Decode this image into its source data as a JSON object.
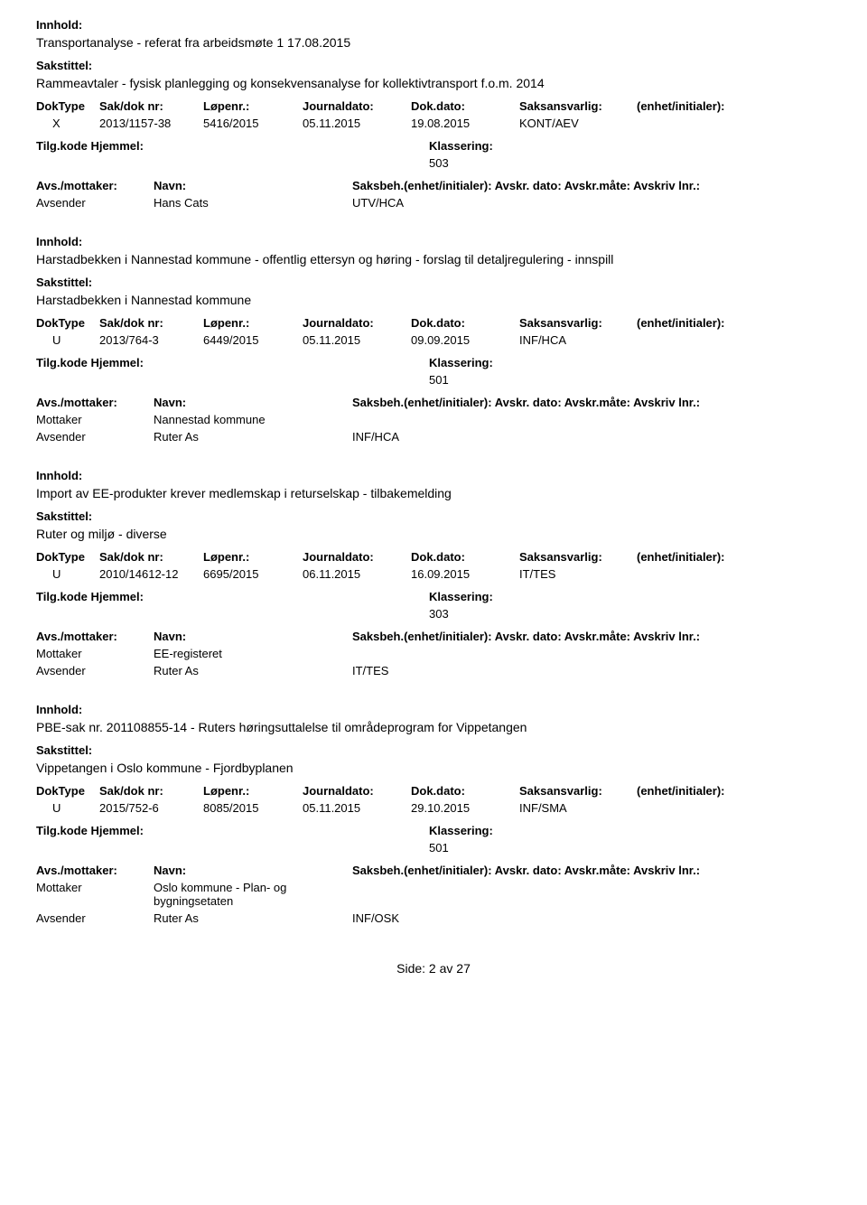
{
  "labels": {
    "innhold": "Innhold:",
    "sakstittel": "Sakstittel:",
    "doktype": "DokType",
    "sakdok": "Sak/dok nr:",
    "lopenr": "Løpenr.:",
    "journaldato": "Journaldato:",
    "dokdato": "Dok.dato:",
    "saksansvarlig": "Saksansvarlig:",
    "enhet": "(enhet/initialer):",
    "tilgkode": "Tilg.kode",
    "hjemmel": "Hjemmel:",
    "klassering": "Klassering:",
    "avsmottaker": "Avs./mottaker:",
    "navn": "Navn:",
    "saksbeh": "Saksbeh.(enhet/initialer):",
    "avskrdato": "Avskr. dato:",
    "avskrmate": "Avskr.måte:",
    "avskrivlnr": "Avskriv lnr.:",
    "avsender": "Avsender",
    "mottaker": "Mottaker"
  },
  "entries": [
    {
      "innhold": "Transportanalyse - referat fra arbeidsmøte 1 17.08.2015",
      "sakstittel": "Rammeavtaler - fysisk planlegging og konsekvensanalyse for kollektivtransport f.o.m. 2014",
      "doktype": "X",
      "sakdok": "2013/1157-38",
      "lopenr": "5416/2015",
      "jdato": "05.11.2015",
      "ddato": "19.08.2015",
      "saks": "KONT/AEV",
      "klass": "503",
      "parties": [
        {
          "role": "Avsender",
          "name": "Hans Cats",
          "code": "UTV/HCA"
        }
      ]
    },
    {
      "innhold": "Harstadbekken i Nannestad kommune - offentlig ettersyn og høring - forslag til detaljregulering - innspill",
      "sakstittel": "Harstadbekken i Nannestad kommune",
      "doktype": "U",
      "sakdok": "2013/764-3",
      "lopenr": "6449/2015",
      "jdato": "05.11.2015",
      "ddato": "09.09.2015",
      "saks": "INF/HCA",
      "klass": "501",
      "parties": [
        {
          "role": "Mottaker",
          "name": "Nannestad kommune",
          "code": ""
        },
        {
          "role": "Avsender",
          "name": "Ruter As",
          "code": "INF/HCA"
        }
      ]
    },
    {
      "innhold": "Import av EE-produkter krever medlemskap i returselskap - tilbakemelding",
      "sakstittel": "Ruter og miljø - diverse",
      "doktype": "U",
      "sakdok": "2010/14612-12",
      "lopenr": "6695/2015",
      "jdato": "06.11.2015",
      "ddato": "16.09.2015",
      "saks": "IT/TES",
      "klass": "303",
      "parties": [
        {
          "role": "Mottaker",
          "name": "EE-registeret",
          "code": ""
        },
        {
          "role": "Avsender",
          "name": "Ruter As",
          "code": "IT/TES"
        }
      ]
    },
    {
      "innhold": "PBE-sak nr. 201108855-14 - Ruters høringsuttalelse til områdeprogram for Vippetangen",
      "sakstittel": "Vippetangen i Oslo kommune - Fjordbyplanen",
      "doktype": "U",
      "sakdok": "2015/752-6",
      "lopenr": "8085/2015",
      "jdato": "05.11.2015",
      "ddato": "29.10.2015",
      "saks": "INF/SMA",
      "klass": "501",
      "parties": [
        {
          "role": "Mottaker",
          "name": "Oslo kommune - Plan- og bygningsetaten",
          "code": ""
        },
        {
          "role": "Avsender",
          "name": "Ruter As",
          "code": "INF/OSK"
        }
      ]
    }
  ],
  "footer": "Side: 2 av 27"
}
